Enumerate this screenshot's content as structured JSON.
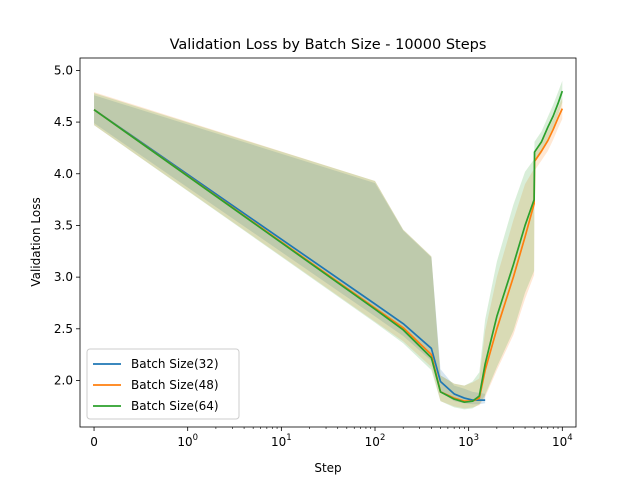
{
  "chart_data": {
    "type": "line",
    "title": "Validation Loss by Batch Size - 10000 Steps",
    "xlabel": "Step",
    "ylabel": "Validation Loss",
    "xscale": "symlog",
    "xlim": [
      -0.15,
      14000
    ],
    "ylim": [
      1.55,
      5.12
    ],
    "grid": false,
    "legend_position": "lower-left",
    "x_ticks": [
      {
        "value": 0,
        "base": "0",
        "exp": ""
      },
      {
        "value": 1,
        "base": "10",
        "exp": "0"
      },
      {
        "value": 10,
        "base": "10",
        "exp": "1"
      },
      {
        "value": 100,
        "base": "10",
        "exp": "2"
      },
      {
        "value": 1000,
        "base": "10",
        "exp": "3"
      },
      {
        "value": 10000,
        "base": "10",
        "exp": "4"
      }
    ],
    "y_ticks": [
      "2.0",
      "2.5",
      "3.0",
      "3.5",
      "4.0",
      "4.5",
      "5.0"
    ],
    "series": [
      {
        "name": "Batch Size(32)",
        "color": "#1f77b4",
        "x": [
          0,
          100,
          200,
          400,
          500,
          700,
          900,
          1100,
          1300,
          1500
        ],
        "y": [
          4.62,
          2.74,
          2.55,
          2.31,
          1.99,
          1.87,
          1.83,
          1.81,
          1.81,
          1.81
        ],
        "lower": [
          4.49,
          2.62,
          2.43,
          2.19,
          1.89,
          1.8,
          1.78,
          1.77,
          1.77,
          1.78
        ],
        "upper": [
          4.76,
          3.91,
          3.45,
          3.19,
          2.11,
          1.95,
          1.92,
          1.89,
          1.88,
          1.87
        ]
      },
      {
        "name": "Batch Size(48)",
        "color": "#ff7f0e",
        "x": [
          0,
          100,
          200,
          400,
          500,
          700,
          900,
          1100,
          1300,
          1500,
          2000,
          3000,
          4000,
          5000,
          5050,
          6000,
          7000,
          8000,
          9000,
          10000
        ],
        "y": [
          4.62,
          2.7,
          2.51,
          2.25,
          1.89,
          1.83,
          1.8,
          1.8,
          1.83,
          2.1,
          2.5,
          3.0,
          3.39,
          3.71,
          4.12,
          4.22,
          4.32,
          4.43,
          4.54,
          4.63
        ],
        "lower": [
          4.47,
          2.57,
          2.38,
          2.13,
          1.8,
          1.75,
          1.73,
          1.74,
          1.76,
          1.84,
          2.1,
          2.44,
          2.79,
          3.02,
          4.03,
          4.13,
          4.22,
          4.33,
          4.44,
          4.53
        ],
        "upper": [
          4.79,
          3.93,
          3.46,
          3.2,
          2.05,
          1.97,
          1.95,
          1.98,
          2.02,
          2.48,
          3.0,
          3.55,
          3.9,
          4.05,
          4.21,
          4.31,
          4.42,
          4.53,
          4.64,
          4.73
        ]
      },
      {
        "name": "Batch Size(64)",
        "color": "#2ca02c",
        "x": [
          0,
          100,
          200,
          400,
          500,
          700,
          900,
          1100,
          1300,
          1500,
          2000,
          3000,
          4000,
          5000,
          5050,
          6000,
          7000,
          8000,
          9000,
          10000
        ],
        "y": [
          4.62,
          2.69,
          2.49,
          2.22,
          1.89,
          1.82,
          1.79,
          1.8,
          1.85,
          2.16,
          2.62,
          3.12,
          3.5,
          3.75,
          4.21,
          4.31,
          4.45,
          4.56,
          4.68,
          4.8
        ],
        "lower": [
          4.47,
          2.56,
          2.36,
          2.1,
          1.8,
          1.74,
          1.72,
          1.73,
          1.77,
          1.86,
          2.13,
          2.48,
          2.85,
          3.06,
          4.11,
          4.2,
          4.34,
          4.45,
          4.57,
          4.69
        ],
        "upper": [
          4.78,
          3.93,
          3.46,
          3.2,
          2.05,
          1.97,
          1.95,
          1.99,
          2.08,
          2.59,
          3.15,
          3.7,
          4.02,
          4.14,
          4.31,
          4.41,
          4.55,
          4.67,
          4.79,
          4.9
        ]
      }
    ]
  }
}
